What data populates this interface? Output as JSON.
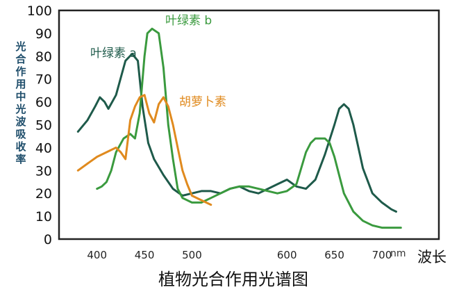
{
  "chart_data": {
    "type": "line",
    "title": "植物光合作用光谱图",
    "xlabel": "波长",
    "x_unit": "nm",
    "ylabel": "光合作用中光波吸收率",
    "ylim": [
      0,
      100
    ],
    "yticks": [
      0,
      10,
      20,
      30,
      40,
      50,
      60,
      70,
      80,
      90,
      100
    ],
    "xticks": [
      400,
      450,
      500,
      600,
      650,
      700
    ],
    "xlim": [
      360,
      760
    ],
    "grid": false,
    "legend": "inline labels",
    "series": [
      {
        "name": "叶绿素 a",
        "color": "#1e5a4a",
        "x": [
          380,
          390,
          398,
          403,
          408,
          412,
          420,
          430,
          437,
          443,
          448,
          454,
          460,
          470,
          480,
          490,
          500,
          510,
          520,
          530,
          540,
          550,
          560,
          570,
          580,
          590,
          600,
          610,
          620,
          630,
          640,
          650,
          655,
          660,
          665,
          670,
          680,
          690,
          700,
          710,
          715
        ],
        "values": [
          47,
          52,
          58,
          62,
          60,
          57,
          63,
          78,
          81,
          78,
          58,
          42,
          35,
          28,
          22,
          19,
          20,
          21,
          21,
          20,
          22,
          23,
          21,
          20,
          22,
          24,
          26,
          23,
          22,
          26,
          37,
          50,
          57,
          59,
          57,
          50,
          31,
          20,
          16,
          13,
          12
        ]
      },
      {
        "name": "叶绿素 b",
        "color": "#3a9a3e",
        "x": [
          400,
          405,
          410,
          415,
          420,
          428,
          435,
          440,
          445,
          450,
          453,
          458,
          465,
          470,
          475,
          480,
          485,
          490,
          500,
          510,
          520,
          530,
          540,
          550,
          560,
          570,
          580,
          590,
          600,
          610,
          620,
          625,
          630,
          640,
          645,
          650,
          655,
          660,
          670,
          680,
          690,
          700,
          720
        ],
        "values": [
          22,
          23,
          25,
          30,
          38,
          44,
          46,
          44,
          55,
          80,
          90,
          92,
          90,
          75,
          50,
          35,
          22,
          18,
          16,
          16,
          18,
          20,
          22,
          23,
          23,
          22,
          21,
          20,
          21,
          24,
          38,
          42,
          44,
          44,
          42,
          36,
          28,
          20,
          12,
          8,
          6,
          5,
          5
        ]
      },
      {
        "name": "胡萝卜素",
        "color": "#e08a1e",
        "x": [
          380,
          390,
          400,
          410,
          420,
          425,
          430,
          435,
          440,
          445,
          450,
          455,
          460,
          465,
          470,
          475,
          480,
          485,
          490,
          495,
          500,
          510,
          520
        ],
        "values": [
          30,
          33,
          36,
          38,
          40,
          38,
          35,
          52,
          58,
          62,
          63,
          55,
          51,
          59,
          62,
          58,
          50,
          40,
          30,
          24,
          19,
          17,
          15
        ]
      }
    ]
  }
}
